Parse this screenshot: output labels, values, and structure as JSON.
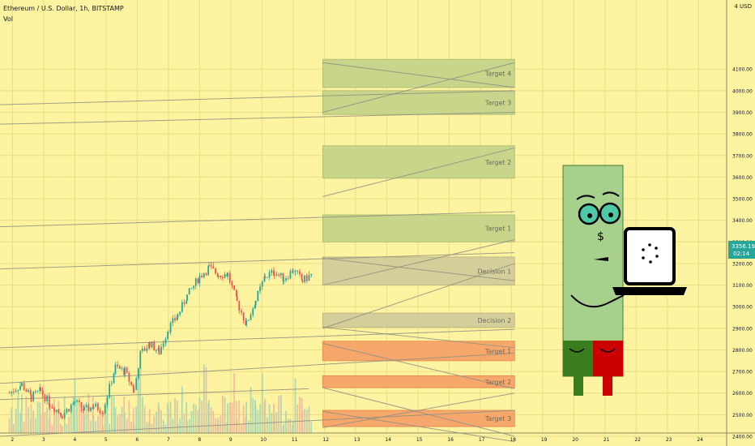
{
  "header": {
    "symbol_title": "Ethereum / U.S. Dollar, 1h, BITSTAMP",
    "volume_label": "Vol",
    "currency": "4 USD"
  },
  "colors": {
    "background": "#fdf3a0",
    "zone_green": "#c7d68a",
    "zone_gray": "#d4cf9a",
    "zone_orange": "#f6a86c",
    "candle_up": "#26a69a",
    "candle_down": "#ef5350",
    "price_badge": "#26a69a",
    "character_body": "#a8d08d",
    "character_leg_left": "#3a7d1e",
    "character_leg_right": "#cc0000"
  },
  "price_badge": {
    "price": "3356.19",
    "countdown": "02:14"
  },
  "chart_data": {
    "type": "candlestick",
    "title": "Ethereum / U.S. Dollar, 1h, BITSTAMP",
    "ylim": [
      2355,
      4420
    ],
    "y_ticks": [
      "4100.00",
      "4000.00",
      "3900.00",
      "3800.00",
      "3700.00",
      "3600.00",
      "3500.00",
      "3400.00",
      "3300.00",
      "3200.00",
      "3100.00",
      "3000.00",
      "2900.00",
      "2800.00",
      "2700.00",
      "2600.00",
      "2500.00",
      "2400.00"
    ],
    "x_ticks": [
      "2",
      "3",
      "4",
      "5",
      "6",
      "7",
      "8",
      "9",
      "10",
      "11",
      "12",
      "13",
      "14",
      "15",
      "16",
      "17",
      "18",
      "19",
      "20",
      "21",
      "22",
      "23",
      "24"
    ],
    "x_range": [
      1.6,
      24.9
    ],
    "price_path": [
      [
        1.9,
        2600
      ],
      [
        2.3,
        2640
      ],
      [
        2.6,
        2580
      ],
      [
        2.9,
        2610
      ],
      [
        3.2,
        2550
      ],
      [
        3.6,
        2500
      ],
      [
        4.0,
        2560
      ],
      [
        4.3,
        2520
      ],
      [
        4.6,
        2540
      ],
      [
        4.9,
        2520
      ],
      [
        5.3,
        2720
      ],
      [
        5.6,
        2700
      ],
      [
        5.9,
        2610
      ],
      [
        6.1,
        2780
      ],
      [
        6.4,
        2830
      ],
      [
        6.7,
        2790
      ],
      [
        7.0,
        2900
      ],
      [
        7.3,
        2960
      ],
      [
        7.6,
        3050
      ],
      [
        8.0,
        3140
      ],
      [
        8.3,
        3180
      ],
      [
        8.6,
        3150
      ],
      [
        8.9,
        3150
      ],
      [
        9.2,
        3020
      ],
      [
        9.5,
        2920
      ],
      [
        9.8,
        3030
      ],
      [
        10.1,
        3140
      ],
      [
        10.4,
        3160
      ],
      [
        10.7,
        3130
      ],
      [
        11.0,
        3170
      ],
      [
        11.3,
        3120
      ],
      [
        11.6,
        3150
      ]
    ],
    "zones": [
      {
        "label": "Target 4",
        "color": "green",
        "y1": 4015,
        "y2": 4145
      },
      {
        "label": "Target 3",
        "color": "green",
        "y1": 3890,
        "y2": 4000
      },
      {
        "label": "Target 2",
        "color": "green",
        "y1": 3595,
        "y2": 3745
      },
      {
        "label": "Target 1",
        "color": "green",
        "y1": 3300,
        "y2": 3425
      },
      {
        "label": "Decision 1",
        "color": "gray",
        "y1": 3100,
        "y2": 3230
      },
      {
        "label": "Decision 2",
        "color": "gray",
        "y1": 2905,
        "y2": 2970
      },
      {
        "label": "Target 1",
        "color": "orange",
        "y1": 2750,
        "y2": 2840
      },
      {
        "label": "Target 2",
        "color": "orange",
        "y1": 2625,
        "y2": 2680
      },
      {
        "label": "Target 3",
        "color": "orange",
        "y1": 2445,
        "y2": 2520
      }
    ],
    "zone_x_range": [
      11.95,
      18.1
    ],
    "trend_lines": [
      {
        "x1": 1.6,
        "y1": 3935,
        "x2": 18.1,
        "y2": 4000
      },
      {
        "x1": 1.6,
        "y1": 3845,
        "x2": 18.1,
        "y2": 3900
      },
      {
        "x1": 1.6,
        "y1": 3370,
        "x2": 18.1,
        "y2": 3440
      },
      {
        "x1": 1.6,
        "y1": 3175,
        "x2": 18.1,
        "y2": 3250
      },
      {
        "x1": 1.6,
        "y1": 2810,
        "x2": 18.1,
        "y2": 2895
      },
      {
        "x1": 1.6,
        "y1": 2645,
        "x2": 18.1,
        "y2": 2785
      },
      {
        "x1": 1.6,
        "y1": 2570,
        "x2": 11.5,
        "y2": 2620
      },
      {
        "x1": 1.6,
        "y1": 2400,
        "x2": 18.1,
        "y2": 2520
      },
      {
        "x1": 11.95,
        "y1": 4130,
        "x2": 18.1,
        "y2": 4015
      },
      {
        "x1": 11.95,
        "y1": 3900,
        "x2": 18.1,
        "y2": 4130
      },
      {
        "x1": 11.95,
        "y1": 3510,
        "x2": 18.1,
        "y2": 3735
      },
      {
        "x1": 11.95,
        "y1": 3100,
        "x2": 18.1,
        "y2": 3310
      },
      {
        "x1": 11.95,
        "y1": 2900,
        "x2": 18.1,
        "y2": 3200
      },
      {
        "x1": 11.95,
        "y1": 3225,
        "x2": 18.1,
        "y2": 3120
      },
      {
        "x1": 11.95,
        "y1": 2905,
        "x2": 18.1,
        "y2": 2810
      },
      {
        "x1": 11.95,
        "y1": 2830,
        "x2": 18.1,
        "y2": 2620
      },
      {
        "x1": 11.95,
        "y1": 2440,
        "x2": 18.1,
        "y2": 2600
      },
      {
        "x1": 11.95,
        "y1": 2625,
        "x2": 18.1,
        "y2": 2400
      },
      {
        "x1": 11.95,
        "y1": 2515,
        "x2": 18.1,
        "y2": 2375
      }
    ],
    "legend": "none",
    "grid": true
  }
}
